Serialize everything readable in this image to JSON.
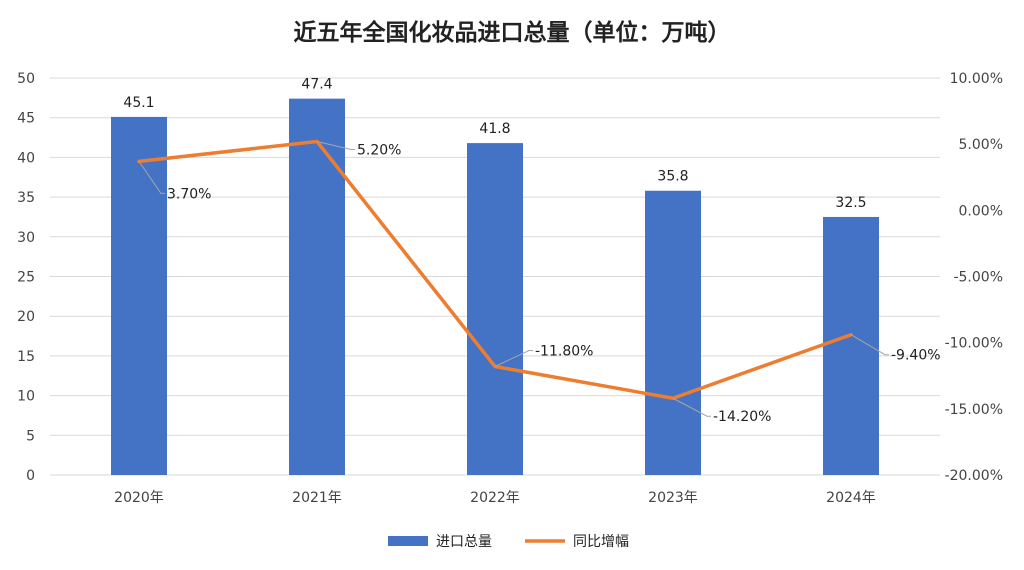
{
  "chart_data": {
    "type": "bar",
    "title": "近五年全国化妆品进口总量（单位：万吨）",
    "categories": [
      "2020年",
      "2021年",
      "2022年",
      "2023年",
      "2024年"
    ],
    "series": [
      {
        "name": "进口总量",
        "type": "bar",
        "axis": "left",
        "values": [
          45.1,
          47.4,
          41.8,
          35.8,
          32.5
        ],
        "labels": [
          "45.1",
          "47.4",
          "41.8",
          "35.8",
          "32.5"
        ]
      },
      {
        "name": "同比增幅",
        "type": "line",
        "axis": "right",
        "values": [
          3.7,
          5.2,
          -11.8,
          -14.2,
          -9.4
        ],
        "labels": [
          "3.70%",
          "5.20%",
          "-11.80%",
          "-14.20%",
          "-9.40%"
        ]
      }
    ],
    "ylim_left": [
      0,
      50
    ],
    "yticks_left": [
      "0",
      "5",
      "10",
      "15",
      "20",
      "25",
      "30",
      "35",
      "40",
      "45",
      "50"
    ],
    "ylim_right": [
      -20,
      10
    ],
    "yticks_right": [
      "-20.00%",
      "-15.00%",
      "-10.00%",
      "-5.00%",
      "0.00%",
      "5.00%",
      "10.00%"
    ],
    "grid": true,
    "legend_position": "bottom",
    "colors": {
      "bar": "#4472C4",
      "line": "#ED7D31",
      "grid": "#D9D9D9",
      "leader": "#A6A6A6"
    }
  }
}
